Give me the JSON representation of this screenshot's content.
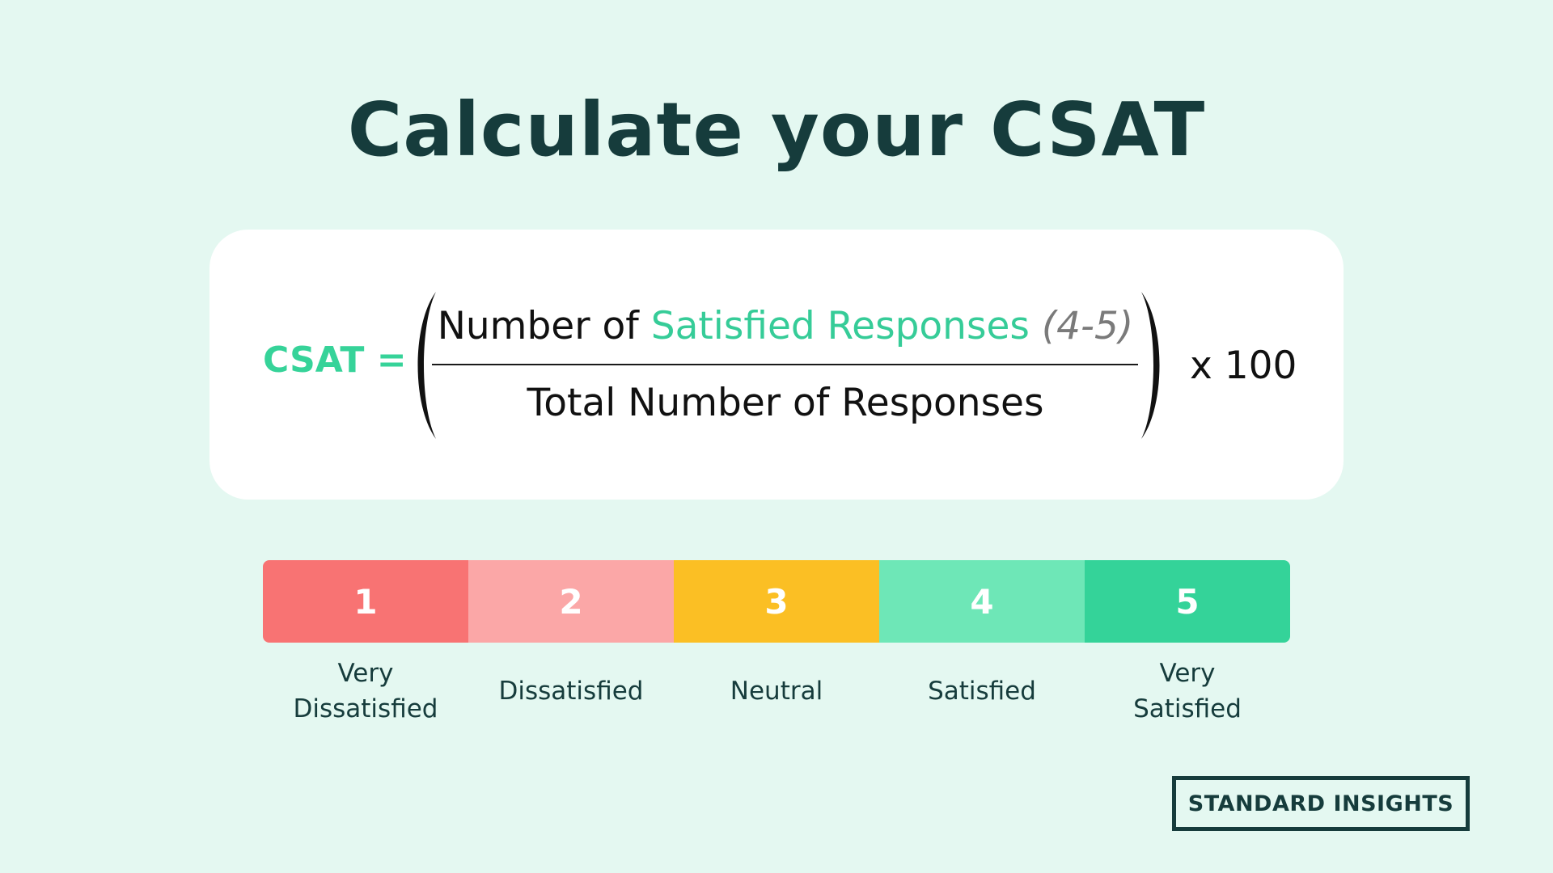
{
  "title": "Calculate your CSAT",
  "formula": {
    "label": "CSAT =",
    "numerator_prefix": "Number of",
    "numerator_highlight": "Satisfied Responses",
    "numerator_range": "(4-5)",
    "denominator": "Total Number of Responses",
    "multiplier": "x 100"
  },
  "scale": [
    {
      "value": "1",
      "label_line1": "Very",
      "label_line2": "Dissatisfied",
      "color": "#f87373"
    },
    {
      "value": "2",
      "label_line1": "Dissatisfied",
      "label_line2": "",
      "color": "#fba7a7"
    },
    {
      "value": "3",
      "label_line1": "Neutral",
      "label_line2": "",
      "color": "#fbbf24"
    },
    {
      "value": "4",
      "label_line1": "Satisfied",
      "label_line2": "",
      "color": "#6ee7b7"
    },
    {
      "value": "5",
      "label_line1": "Very",
      "label_line2": "Satisfied",
      "color": "#34d399"
    }
  ],
  "colors": {
    "background": "#e4f8f1",
    "heading": "#163c3c",
    "accent": "#36d399"
  },
  "brand": "STANDARD INSIGHTS"
}
